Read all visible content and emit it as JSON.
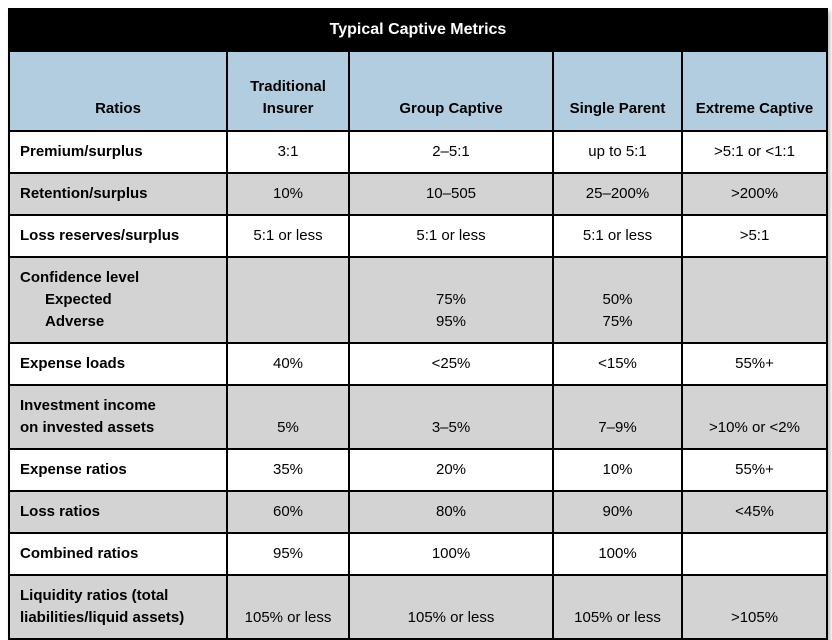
{
  "title": "Typical Captive Metrics",
  "columns": [
    {
      "label": "Ratios"
    },
    {
      "label": "Traditional\nInsurer"
    },
    {
      "label": "Group Captive"
    },
    {
      "label": "Single Parent"
    },
    {
      "label": "Extreme Captive"
    }
  ],
  "rows": [
    {
      "label": "Premium/surplus",
      "cells": [
        "3:1",
        "2–5:1",
        "up to 5:1",
        ">5:1 or <1:1"
      ]
    },
    {
      "label": "Retention/surplus",
      "cells": [
        "10%",
        "10–505",
        "25–200%",
        ">200%"
      ]
    },
    {
      "label": "Loss reserves/surplus",
      "cells": [
        "5:1 or less",
        "5:1 or less",
        "5:1 or less",
        ">5:1"
      ]
    },
    {
      "label": "Confidence level\n      Expected\n      Adverse",
      "cells": [
        "",
        "75%\n95%",
        "50%\n75%",
        ""
      ]
    },
    {
      "label": "Expense loads",
      "cells": [
        "40%",
        "<25%",
        "<15%",
        "55%+"
      ]
    },
    {
      "label": "Investment income\non invested assets",
      "cells": [
        "5%",
        "3–5%",
        "7–9%",
        ">10% or <2%"
      ]
    },
    {
      "label": "Expense ratios",
      "cells": [
        "35%",
        "20%",
        "10%",
        "55%+"
      ]
    },
    {
      "label": "Loss ratios",
      "cells": [
        "60%",
        "80%",
        "90%",
        "<45%"
      ]
    },
    {
      "label": "Combined ratios",
      "cells": [
        "95%",
        "100%",
        "100%",
        ""
      ]
    },
    {
      "label": "Liquidity ratios (total\nliabilities/liquid assets)",
      "cells": [
        "105% or less",
        "105% or less",
        "105% or less",
        ">105%"
      ]
    }
  ],
  "colors": {
    "title_bar_bg": "#000000",
    "title_bar_text": "#FFFFFF",
    "header_row_bg": "#B3CDE0",
    "shaded_row_bg": "#D3D3D3",
    "border": "#000000"
  }
}
